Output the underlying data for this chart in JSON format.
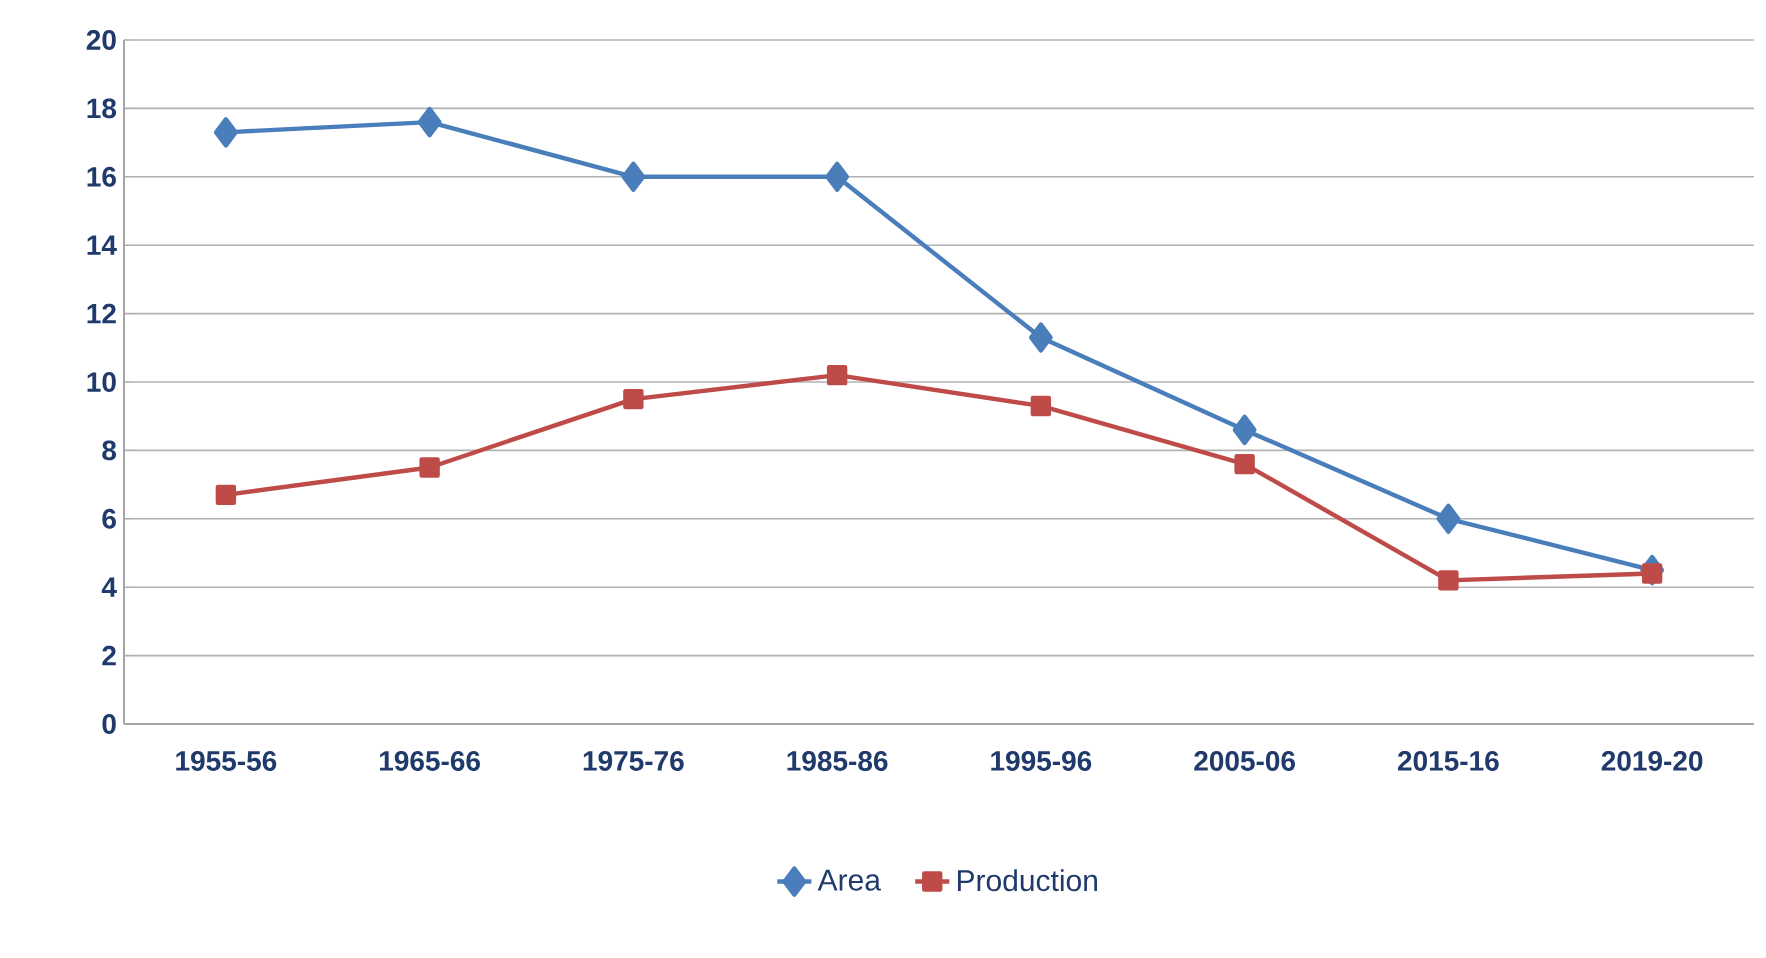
{
  "chart_data": {
    "type": "line",
    "categories": [
      "1955-56",
      "1965-66",
      "1975-76",
      "1985-86",
      "1995-96",
      "2005-06",
      "2015-16",
      "2019-20"
    ],
    "series": [
      {
        "name": "Area",
        "color": "#4a7ebb",
        "marker": "diamond",
        "values": [
          17.3,
          17.6,
          16.0,
          16.0,
          11.3,
          8.6,
          6.0,
          4.5
        ]
      },
      {
        "name": "Production",
        "color": "#be4b48",
        "marker": "square",
        "values": [
          6.7,
          7.5,
          9.5,
          10.2,
          9.3,
          7.6,
          4.2,
          4.4
        ]
      }
    ],
    "ylim": [
      0,
      20
    ],
    "yticks": [
      0,
      2,
      4,
      6,
      8,
      10,
      12,
      14,
      16,
      18,
      20
    ],
    "grid": "y",
    "legend": "bottom",
    "line_style": "solid"
  }
}
